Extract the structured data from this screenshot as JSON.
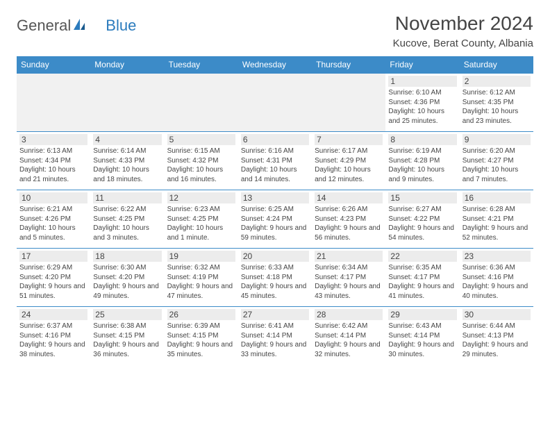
{
  "logo": {
    "text1": "General",
    "text2": "Blue"
  },
  "title": "November 2024",
  "location": "Kucove, Berat County, Albania",
  "colors": {
    "header_bg": "#3c8bc8",
    "row_border": "#3c8bc8",
    "daynum_bg": "#ececec",
    "text": "#444444",
    "logo_blue": "#2b7bbd"
  },
  "day_headers": [
    "Sunday",
    "Monday",
    "Tuesday",
    "Wednesday",
    "Thursday",
    "Friday",
    "Saturday"
  ],
  "weeks": [
    [
      null,
      null,
      null,
      null,
      null,
      {
        "n": "1",
        "sunrise": "6:10 AM",
        "sunset": "4:36 PM",
        "daylight": "10 hours and 25 minutes."
      },
      {
        "n": "2",
        "sunrise": "6:12 AM",
        "sunset": "4:35 PM",
        "daylight": "10 hours and 23 minutes."
      }
    ],
    [
      {
        "n": "3",
        "sunrise": "6:13 AM",
        "sunset": "4:34 PM",
        "daylight": "10 hours and 21 minutes."
      },
      {
        "n": "4",
        "sunrise": "6:14 AM",
        "sunset": "4:33 PM",
        "daylight": "10 hours and 18 minutes."
      },
      {
        "n": "5",
        "sunrise": "6:15 AM",
        "sunset": "4:32 PM",
        "daylight": "10 hours and 16 minutes."
      },
      {
        "n": "6",
        "sunrise": "6:16 AM",
        "sunset": "4:31 PM",
        "daylight": "10 hours and 14 minutes."
      },
      {
        "n": "7",
        "sunrise": "6:17 AM",
        "sunset": "4:29 PM",
        "daylight": "10 hours and 12 minutes."
      },
      {
        "n": "8",
        "sunrise": "6:19 AM",
        "sunset": "4:28 PM",
        "daylight": "10 hours and 9 minutes."
      },
      {
        "n": "9",
        "sunrise": "6:20 AM",
        "sunset": "4:27 PM",
        "daylight": "10 hours and 7 minutes."
      }
    ],
    [
      {
        "n": "10",
        "sunrise": "6:21 AM",
        "sunset": "4:26 PM",
        "daylight": "10 hours and 5 minutes."
      },
      {
        "n": "11",
        "sunrise": "6:22 AM",
        "sunset": "4:25 PM",
        "daylight": "10 hours and 3 minutes."
      },
      {
        "n": "12",
        "sunrise": "6:23 AM",
        "sunset": "4:25 PM",
        "daylight": "10 hours and 1 minute."
      },
      {
        "n": "13",
        "sunrise": "6:25 AM",
        "sunset": "4:24 PM",
        "daylight": "9 hours and 59 minutes."
      },
      {
        "n": "14",
        "sunrise": "6:26 AM",
        "sunset": "4:23 PM",
        "daylight": "9 hours and 56 minutes."
      },
      {
        "n": "15",
        "sunrise": "6:27 AM",
        "sunset": "4:22 PM",
        "daylight": "9 hours and 54 minutes."
      },
      {
        "n": "16",
        "sunrise": "6:28 AM",
        "sunset": "4:21 PM",
        "daylight": "9 hours and 52 minutes."
      }
    ],
    [
      {
        "n": "17",
        "sunrise": "6:29 AM",
        "sunset": "4:20 PM",
        "daylight": "9 hours and 51 minutes."
      },
      {
        "n": "18",
        "sunrise": "6:30 AM",
        "sunset": "4:20 PM",
        "daylight": "9 hours and 49 minutes."
      },
      {
        "n": "19",
        "sunrise": "6:32 AM",
        "sunset": "4:19 PM",
        "daylight": "9 hours and 47 minutes."
      },
      {
        "n": "20",
        "sunrise": "6:33 AM",
        "sunset": "4:18 PM",
        "daylight": "9 hours and 45 minutes."
      },
      {
        "n": "21",
        "sunrise": "6:34 AM",
        "sunset": "4:17 PM",
        "daylight": "9 hours and 43 minutes."
      },
      {
        "n": "22",
        "sunrise": "6:35 AM",
        "sunset": "4:17 PM",
        "daylight": "9 hours and 41 minutes."
      },
      {
        "n": "23",
        "sunrise": "6:36 AM",
        "sunset": "4:16 PM",
        "daylight": "9 hours and 40 minutes."
      }
    ],
    [
      {
        "n": "24",
        "sunrise": "6:37 AM",
        "sunset": "4:16 PM",
        "daylight": "9 hours and 38 minutes."
      },
      {
        "n": "25",
        "sunrise": "6:38 AM",
        "sunset": "4:15 PM",
        "daylight": "9 hours and 36 minutes."
      },
      {
        "n": "26",
        "sunrise": "6:39 AM",
        "sunset": "4:15 PM",
        "daylight": "9 hours and 35 minutes."
      },
      {
        "n": "27",
        "sunrise": "6:41 AM",
        "sunset": "4:14 PM",
        "daylight": "9 hours and 33 minutes."
      },
      {
        "n": "28",
        "sunrise": "6:42 AM",
        "sunset": "4:14 PM",
        "daylight": "9 hours and 32 minutes."
      },
      {
        "n": "29",
        "sunrise": "6:43 AM",
        "sunset": "4:14 PM",
        "daylight": "9 hours and 30 minutes."
      },
      {
        "n": "30",
        "sunrise": "6:44 AM",
        "sunset": "4:13 PM",
        "daylight": "9 hours and 29 minutes."
      }
    ]
  ],
  "labels": {
    "sunrise": "Sunrise:",
    "sunset": "Sunset:",
    "daylight": "Daylight:"
  }
}
